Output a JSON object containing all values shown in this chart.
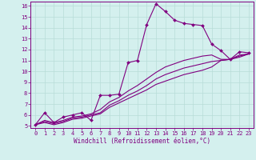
{
  "xlabel": "Windchill (Refroidissement éolien,°C)",
  "bg_color": "#d4f0ee",
  "line_color": "#800080",
  "grid_color": "#b8dcd8",
  "xlim": [
    -0.5,
    23.5
  ],
  "ylim": [
    4.8,
    16.4
  ],
  "xticks": [
    0,
    1,
    2,
    3,
    4,
    5,
    6,
    7,
    8,
    9,
    10,
    11,
    12,
    13,
    14,
    15,
    16,
    17,
    18,
    19,
    20,
    21,
    22,
    23
  ],
  "yticks": [
    5,
    6,
    7,
    8,
    9,
    10,
    11,
    12,
    13,
    14,
    15,
    16
  ],
  "lines": [
    {
      "x": [
        0,
        1,
        2,
        3,
        4,
        5,
        6,
        7,
        8,
        9,
        10,
        11,
        12,
        13,
        14,
        15,
        16,
        17,
        18,
        19,
        20,
        21,
        22,
        23
      ],
      "y": [
        5.1,
        6.2,
        5.3,
        5.8,
        6.0,
        6.2,
        5.5,
        7.8,
        7.8,
        7.9,
        10.8,
        11.0,
        14.3,
        16.2,
        15.5,
        14.7,
        14.4,
        14.3,
        14.2,
        12.5,
        11.9,
        11.1,
        11.8,
        11.7
      ],
      "marker": "D",
      "markersize": 2.0
    },
    {
      "x": [
        0,
        1,
        2,
        3,
        4,
        5,
        6,
        7,
        8,
        9,
        10,
        11,
        12,
        13,
        14,
        15,
        16,
        17,
        18,
        19,
        20,
        21,
        22,
        23
      ],
      "y": [
        5.1,
        5.5,
        5.3,
        5.5,
        5.8,
        5.9,
        6.1,
        6.5,
        7.2,
        7.6,
        8.2,
        8.7,
        9.3,
        9.9,
        10.4,
        10.7,
        11.0,
        11.2,
        11.4,
        11.5,
        11.1,
        11.1,
        11.5,
        11.6
      ],
      "marker": null,
      "markersize": 0
    },
    {
      "x": [
        0,
        1,
        2,
        3,
        4,
        5,
        6,
        7,
        8,
        9,
        10,
        11,
        12,
        13,
        14,
        15,
        16,
        17,
        18,
        19,
        20,
        21,
        22,
        23
      ],
      "y": [
        5.1,
        5.4,
        5.2,
        5.4,
        5.7,
        5.8,
        6.0,
        6.2,
        6.9,
        7.3,
        7.8,
        8.2,
        8.7,
        9.3,
        9.7,
        10.0,
        10.3,
        10.5,
        10.7,
        10.9,
        11.0,
        11.1,
        11.4,
        11.6
      ],
      "marker": null,
      "markersize": 0
    },
    {
      "x": [
        0,
        1,
        2,
        3,
        4,
        5,
        6,
        7,
        8,
        9,
        10,
        11,
        12,
        13,
        14,
        15,
        16,
        17,
        18,
        19,
        20,
        21,
        22,
        23
      ],
      "y": [
        5.1,
        5.3,
        5.1,
        5.3,
        5.6,
        5.7,
        5.9,
        6.1,
        6.7,
        7.1,
        7.5,
        7.9,
        8.3,
        8.8,
        9.1,
        9.4,
        9.7,
        9.9,
        10.1,
        10.4,
        11.0,
        11.1,
        11.3,
        11.6
      ],
      "marker": null,
      "markersize": 0
    }
  ]
}
